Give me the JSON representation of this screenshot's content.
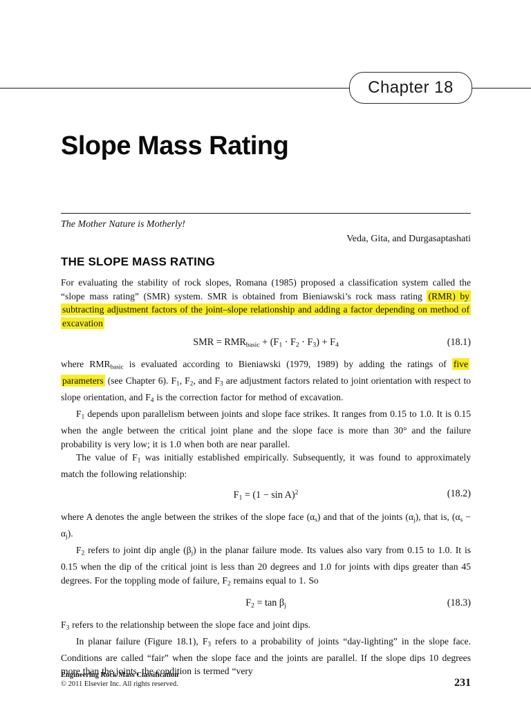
{
  "page": {
    "chapter_badge": "Chapter 18",
    "title": "Slope Mass Rating",
    "epigraph": {
      "quote": "The Mother Nature is Motherly!",
      "attribution": "Veda, Gita, and Durgasaptashati"
    },
    "section_heading": "THE SLOPE MASS RATING",
    "colors": {
      "highlight": "#f8ed22",
      "text": "#111111"
    },
    "blocks": [
      {
        "type": "paragraph",
        "segments": [
          {
            "t": "For evaluating the stability of rock slopes, Romana (1985) proposed a classification system called the “slope mass rating” (SMR) system. SMR is obtained from Bieniawski’s rock mass rating "
          },
          {
            "t": "(RMR) by subtracting adjustment factors of the joint–slope relationship and adding a factor depending on method of excavation",
            "s": "hl"
          }
        ]
      },
      {
        "type": "equation",
        "number": "(18.1)",
        "segments": [
          {
            "t": "SMR = RMR"
          },
          {
            "t": "basic",
            "s": "sub"
          },
          {
            "t": " + (F"
          },
          {
            "t": "1",
            "s": "sub"
          },
          {
            "t": " · F"
          },
          {
            "t": "2",
            "s": "sub"
          },
          {
            "t": " · F"
          },
          {
            "t": "3",
            "s": "sub"
          },
          {
            "t": ") + F"
          },
          {
            "t": "4",
            "s": "sub"
          }
        ]
      },
      {
        "type": "paragraph",
        "segments": [
          {
            "t": "where RMR"
          },
          {
            "t": "basic",
            "s": "sub"
          },
          {
            "t": " is evaluated according to Bieniawski (1979, 1989) by adding the ratings of "
          },
          {
            "t": "five parameters",
            "s": "hl"
          },
          {
            "t": " (see Chapter 6). F"
          },
          {
            "t": "1",
            "s": "sub"
          },
          {
            "t": ", F"
          },
          {
            "t": "2",
            "s": "sub"
          },
          {
            "t": ", and F"
          },
          {
            "t": "3",
            "s": "sub"
          },
          {
            "t": " are adjustment factors related to joint orientation with respect to slope orientation, and F"
          },
          {
            "t": "4",
            "s": "sub"
          },
          {
            "t": " is the correction factor for method of excavation."
          }
        ]
      },
      {
        "type": "paragraph",
        "indent": true,
        "segments": [
          {
            "t": "F"
          },
          {
            "t": "1",
            "s": "sub"
          },
          {
            "t": " depends upon parallelism between joints and slope face strikes. It ranges from 0.15 to 1.0. It is 0.15 when the angle between the critical joint plane and the slope face is more than 30° and the failure probability is very low; it is 1.0 when both are near parallel."
          }
        ]
      },
      {
        "type": "paragraph",
        "indent": true,
        "segments": [
          {
            "t": "The value of F"
          },
          {
            "t": "1",
            "s": "sub"
          },
          {
            "t": " was initially established empirically. Subsequently, it was found to approximately match the following relationship:"
          }
        ]
      },
      {
        "type": "equation",
        "number": "(18.2)",
        "segments": [
          {
            "t": "F"
          },
          {
            "t": "1",
            "s": "sub"
          },
          {
            "t": " = (1 − sin A)"
          },
          {
            "t": "2",
            "s": "sup"
          }
        ]
      },
      {
        "type": "paragraph",
        "segments": [
          {
            "t": "where A denotes the angle between the strikes of the slope face (α"
          },
          {
            "t": "s",
            "s": "sub"
          },
          {
            "t": ") and that of the joints (α"
          },
          {
            "t": "j",
            "s": "sub"
          },
          {
            "t": "), that is, (α"
          },
          {
            "t": "s",
            "s": "sub"
          },
          {
            "t": " − α"
          },
          {
            "t": "j",
            "s": "sub"
          },
          {
            "t": ")."
          }
        ]
      },
      {
        "type": "paragraph",
        "indent": true,
        "segments": [
          {
            "t": "F"
          },
          {
            "t": "2",
            "s": "sub"
          },
          {
            "t": " refers to joint dip angle (β"
          },
          {
            "t": "j",
            "s": "sub"
          },
          {
            "t": ") in the planar failure mode. Its values also vary from 0.15 to 1.0. It is 0.15 when the dip of the critical joint is less than 20 degrees and 1.0 for joints with dips greater than 45 degrees. For the toppling mode of failure, F"
          },
          {
            "t": "2",
            "s": "sub"
          },
          {
            "t": " remains equal to 1. So"
          }
        ]
      },
      {
        "type": "equation",
        "number": "(18.3)",
        "segments": [
          {
            "t": "F"
          },
          {
            "t": "2",
            "s": "sub"
          },
          {
            "t": " = tan β"
          },
          {
            "t": "j",
            "s": "sub"
          }
        ]
      },
      {
        "type": "paragraph",
        "segments": [
          {
            "t": "F"
          },
          {
            "t": "3",
            "s": "sub"
          },
          {
            "t": " refers to the relationship between the slope face and joint dips."
          }
        ]
      },
      {
        "type": "paragraph",
        "indent": true,
        "segments": [
          {
            "t": "In planar failure (Figure 18.1), F"
          },
          {
            "t": "3",
            "s": "sub"
          },
          {
            "t": " refers to a probability of joints “day-lighting” in the slope face. Conditions are called “fair” when the slope face and the joints are parallel. If the slope dips 10 degrees more than the joints, the condition is termed “very"
          }
        ]
      }
    ],
    "footer": {
      "book_title": "Engineering Rock Mass Classification",
      "copyright": "© 2011 Elsevier Inc. All rights reserved.",
      "page_number": "231"
    }
  }
}
